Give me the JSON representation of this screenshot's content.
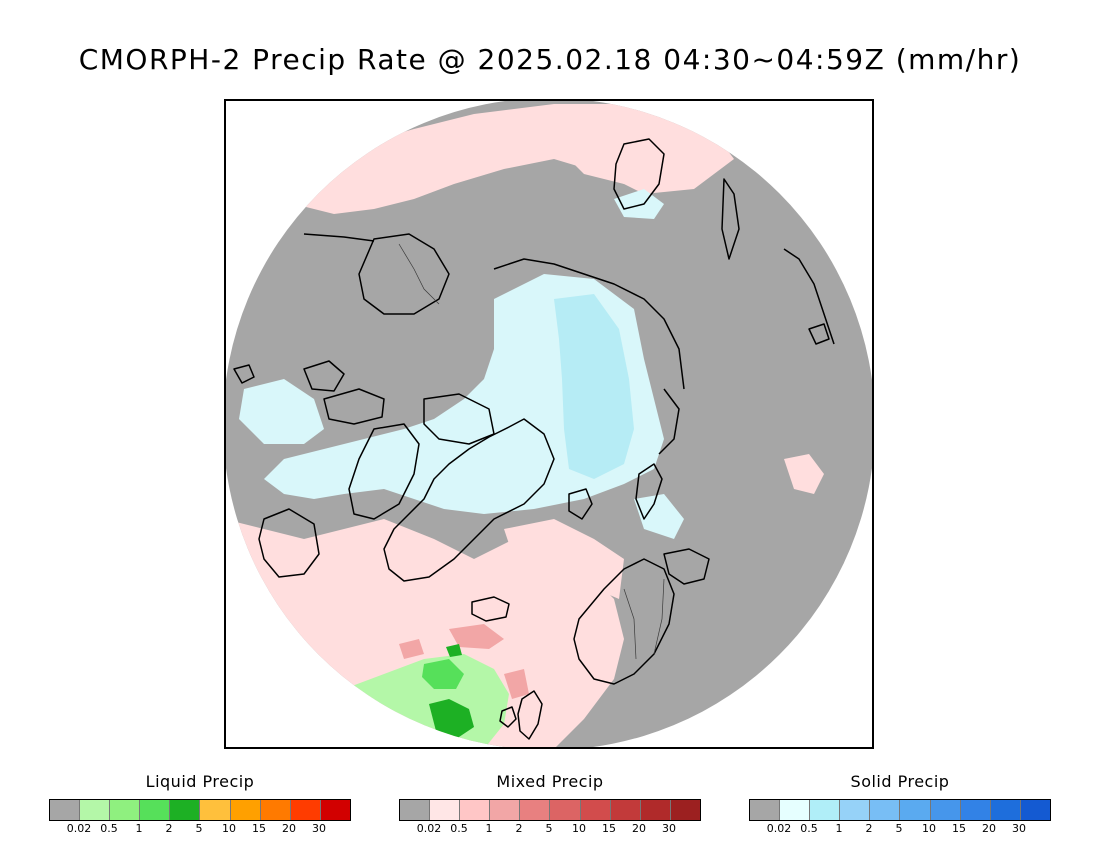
{
  "title": "CMORPH-2 Precip Rate @ 2025.02.18 04:30~04:59Z (mm/hr)",
  "map": {
    "projection": "north-polar-stereographic",
    "colors": {
      "no_precip": "#a6a6a6",
      "mixed_light": "#ffdede",
      "mixed_med": "#f2a6a6",
      "solid_light": "#d9f7fa",
      "solid_med": "#b6ecf5",
      "liquid_light": "#b4f7a8",
      "liquid_med": "#56e05a",
      "liquid_heavy": "#1db024",
      "coast": "#000000"
    }
  },
  "legends": [
    {
      "id": "liquid",
      "title": "Liquid Precip",
      "colors": [
        "#a6a6a6",
        "#b4f7a8",
        "#8ff07f",
        "#56e05a",
        "#1db024",
        "#ffc03c",
        "#ffa000",
        "#ff7a00",
        "#ff3c00",
        "#d20000"
      ],
      "ticks": [
        "0.02",
        "0.5",
        "1",
        "2",
        "5",
        "10",
        "15",
        "20",
        "30"
      ]
    },
    {
      "id": "mixed",
      "title": "Mixed Precip",
      "colors": [
        "#a6a6a6",
        "#ffe6e6",
        "#ffc6c6",
        "#f2a6a6",
        "#e88080",
        "#dc6464",
        "#d24c4c",
        "#c23a3a",
        "#b02a2a",
        "#9c2020"
      ],
      "ticks": [
        "0.02",
        "0.5",
        "1",
        "2",
        "5",
        "10",
        "15",
        "20",
        "30"
      ]
    },
    {
      "id": "solid",
      "title": "Solid Precip",
      "colors": [
        "#a6a6a6",
        "#e6ffff",
        "#b0eef8",
        "#96d2f8",
        "#78bef5",
        "#5aaaf0",
        "#4696eb",
        "#3282e6",
        "#1e6edc",
        "#145ad2"
      ],
      "ticks": [
        "0.02",
        "0.5",
        "1",
        "2",
        "5",
        "10",
        "15",
        "20",
        "30"
      ]
    }
  ]
}
